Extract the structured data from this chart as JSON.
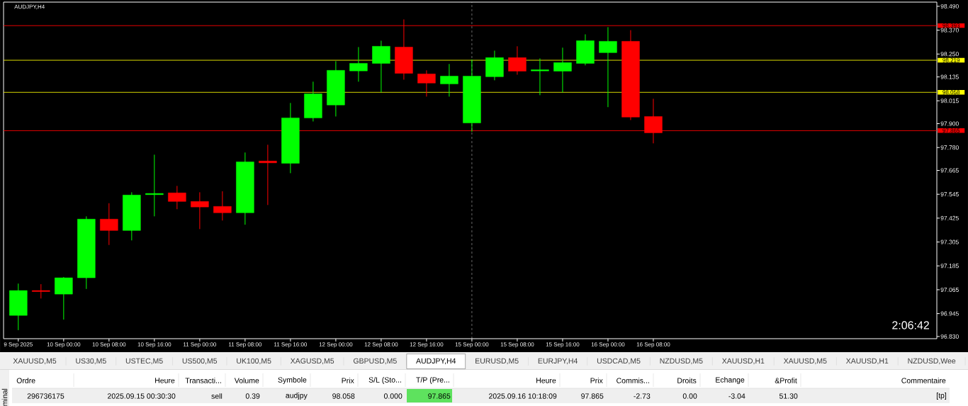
{
  "chart_data": [
    {
      "type": "candlestick",
      "title": "AUDJPY,H4",
      "categories": [
        "9 Sep 2025",
        null,
        "10 Sep 00:00",
        null,
        "10 Sep 08:00",
        null,
        "10 Sep 16:00",
        null,
        "11 Sep 00:00",
        null,
        "11 Sep 08:00",
        null,
        "11 Sep 16:00",
        null,
        "12 Sep 00:00",
        null,
        "12 Sep 08:00",
        null,
        "12 Sep 16:00",
        null,
        "15 Sep 00:00",
        null,
        "15 Sep 08:00",
        null,
        "15 Sep 16:00",
        null,
        "16 Sep 00:00",
        null,
        "16 Sep 08:00",
        null,
        null,
        null,
        null,
        null,
        null,
        null,
        null,
        null,
        null,
        null,
        null
      ],
      "ohlc": [
        [
          96.936,
          97.096,
          96.862,
          97.061
        ],
        [
          97.061,
          97.093,
          97.021,
          97.056
        ],
        [
          97.043,
          97.129,
          96.915,
          97.125
        ],
        [
          97.125,
          97.434,
          97.069,
          97.42
        ],
        [
          97.42,
          97.5,
          97.29,
          97.363
        ],
        [
          97.363,
          97.555,
          97.313,
          97.541
        ],
        [
          97.543,
          97.744,
          97.434,
          97.549
        ],
        [
          97.552,
          97.587,
          97.47,
          97.509
        ],
        [
          97.509,
          97.555,
          97.37,
          97.481
        ],
        [
          97.484,
          97.56,
          97.413,
          97.452
        ],
        [
          97.452,
          97.755,
          97.392,
          97.708
        ],
        [
          97.712,
          97.794,
          97.491,
          97.703
        ],
        [
          97.701,
          98.004,
          97.651,
          97.929
        ],
        [
          97.929,
          98.111,
          97.911,
          98.05
        ],
        [
          97.994,
          98.214,
          97.936,
          98.168
        ],
        [
          98.165,
          98.285,
          98.111,
          98.203
        ],
        [
          98.203,
          98.317,
          98.058,
          98.289
        ],
        [
          98.285,
          98.424,
          98.121,
          98.153
        ],
        [
          98.15,
          98.168,
          98.036,
          98.104
        ],
        [
          98.1,
          98.2,
          98.036,
          98.139
        ],
        [
          97.904,
          98.223,
          97.859,
          98.139
        ],
        [
          98.136,
          98.267,
          98.118,
          98.232
        ],
        [
          98.232,
          98.289,
          98.146,
          98.164
        ],
        [
          98.165,
          98.228,
          98.043,
          98.171
        ],
        [
          98.164,
          98.282,
          98.057,
          98.207
        ],
        [
          98.203,
          98.349,
          98.193,
          98.317
        ],
        [
          98.257,
          98.385,
          97.983,
          98.314
        ],
        [
          98.314,
          98.37,
          97.918,
          97.933
        ],
        [
          97.936,
          98.025,
          97.801,
          97.854
        ],
        null,
        null,
        null,
        null,
        null,
        null,
        null,
        null,
        null,
        null,
        null,
        null
      ],
      "colors": [
        "#00ff00",
        "#ff0000",
        "#00ff00",
        "#00ff00",
        "#ff0000",
        "#00ff00",
        "#00ff00",
        "#ff0000",
        "#ff0000",
        "#ff0000",
        "#00ff00",
        "#ff0000",
        "#00ff00",
        "#00ff00",
        "#00ff00",
        "#00ff00",
        "#00ff00",
        "#ff0000",
        "#ff0000",
        "#00ff00",
        "#00ff00",
        "#00ff00",
        "#ff0000",
        "#00ff00",
        "#00ff00",
        "#00ff00",
        "#00ff00",
        "#ff0000",
        "#ff0000",
        null,
        null,
        null,
        null,
        null,
        null,
        null,
        null,
        null,
        null,
        null,
        null
      ],
      "ylim": [
        96.819,
        98.511
      ],
      "yticks": [
        {
          "value": 98.49,
          "label": "98.490"
        },
        {
          "value": 98.37,
          "label": "98.370"
        },
        {
          "value": 98.25,
          "label": "98.250"
        },
        98.135,
        98.015,
        {
          "value": 97.9,
          "label": "97.900"
        },
        {
          "value": 97.78,
          "label": "97.780"
        },
        97.665,
        97.545,
        97.425,
        97.305,
        97.185,
        97.065,
        96.945,
        {
          "value": 96.83,
          "label": "96.830"
        }
      ],
      "ref_lines": [
        {
          "axis": "y",
          "value": 98.393,
          "label": "98.393",
          "color": "#ff0000"
        },
        {
          "axis": "y",
          "value": 98.219,
          "label": "98.219",
          "color": "#ffff00"
        },
        {
          "axis": "y",
          "value": 98.058,
          "label": "98.058",
          "color": "#ffff00"
        },
        {
          "axis": "y",
          "value": 97.865,
          "label": "97.865",
          "color": "#ff0000"
        },
        {
          "axis": "x",
          "value": "15 Sep 00:00",
          "color": "#ffffff",
          "line_style": "dashed"
        }
      ],
      "annotations": [
        "2:06:42"
      ]
    },
    {
      "type": "other",
      "annotations": [
        "XAUUSD,M5",
        "US30,M5",
        "USTEC,M5",
        "US500,M5",
        "UK100,M5",
        "XAGUSD,M5",
        "GBPUSD,M5",
        "AUDJPY,H4",
        "EURUSD,M5",
        "EURJPY,H4",
        "USDCAD,M5",
        "NZDUSD,M5",
        "XAUUSD,H1",
        "XAUUSD,M5",
        "XAUUSD,H1",
        "NZDUSD,Wee"
      ],
      "colors": [
        null,
        null,
        null,
        null,
        null,
        null,
        null,
        "#ffffff",
        null,
        null,
        null,
        null,
        null,
        null,
        null,
        null
      ]
    },
    {
      "type": "other",
      "ylabel": "minal",
      "categories": [
        "Ordre",
        "Heure",
        "Transacti...",
        "Volume",
        "Symbole",
        "Prix",
        "S/L (Sto...",
        "T/P (Pre...",
        "Heure",
        "Prix",
        "Commis...",
        "Droits",
        "Echange",
        "&Profit",
        "Commentaire"
      ],
      "annotations": [
        "296736175",
        "2025.09.15 00:30:30",
        "sell",
        "0.39",
        "audjpy",
        "98.058",
        "0.000",
        "97.865",
        "2025.09.16 10:18:09",
        "97.865",
        "-2.73",
        "0.00",
        "-3.04",
        "51.30",
        "[tp]"
      ],
      "colors": [
        null,
        null,
        null,
        null,
        null,
        null,
        null,
        "#5ee25e",
        null,
        null,
        null,
        null,
        null,
        null,
        null
      ]
    }
  ]
}
